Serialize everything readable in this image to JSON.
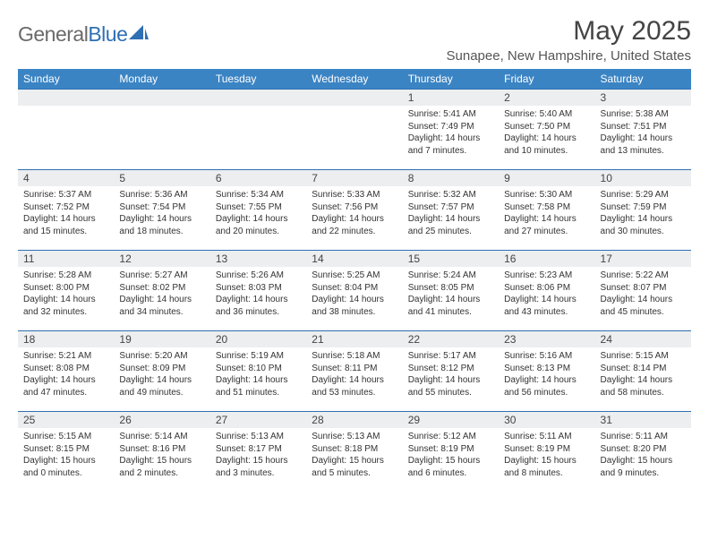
{
  "brand": {
    "g": "General",
    "b": "Blue"
  },
  "title": "May 2025",
  "location": "Sunapee, New Hampshire, United States",
  "colors": {
    "header_bg": "#3b84c4",
    "border": "#2f6fb3",
    "daynum_bg": "#eceeef",
    "logo_gray": "#6a6a6a",
    "logo_blue": "#2f6fb3"
  },
  "day_headers": [
    "Sunday",
    "Monday",
    "Tuesday",
    "Wednesday",
    "Thursday",
    "Friday",
    "Saturday"
  ],
  "weeks": [
    [
      {
        "n": "",
        "sr": "",
        "ss": "",
        "dh": "",
        "dm": ""
      },
      {
        "n": "",
        "sr": "",
        "ss": "",
        "dh": "",
        "dm": ""
      },
      {
        "n": "",
        "sr": "",
        "ss": "",
        "dh": "",
        "dm": ""
      },
      {
        "n": "",
        "sr": "",
        "ss": "",
        "dh": "",
        "dm": ""
      },
      {
        "n": "1",
        "sr": "5:41 AM",
        "ss": "7:49 PM",
        "dh": "14",
        "dm": "7"
      },
      {
        "n": "2",
        "sr": "5:40 AM",
        "ss": "7:50 PM",
        "dh": "14",
        "dm": "10"
      },
      {
        "n": "3",
        "sr": "5:38 AM",
        "ss": "7:51 PM",
        "dh": "14",
        "dm": "13"
      }
    ],
    [
      {
        "n": "4",
        "sr": "5:37 AM",
        "ss": "7:52 PM",
        "dh": "14",
        "dm": "15"
      },
      {
        "n": "5",
        "sr": "5:36 AM",
        "ss": "7:54 PM",
        "dh": "14",
        "dm": "18"
      },
      {
        "n": "6",
        "sr": "5:34 AM",
        "ss": "7:55 PM",
        "dh": "14",
        "dm": "20"
      },
      {
        "n": "7",
        "sr": "5:33 AM",
        "ss": "7:56 PM",
        "dh": "14",
        "dm": "22"
      },
      {
        "n": "8",
        "sr": "5:32 AM",
        "ss": "7:57 PM",
        "dh": "14",
        "dm": "25"
      },
      {
        "n": "9",
        "sr": "5:30 AM",
        "ss": "7:58 PM",
        "dh": "14",
        "dm": "27"
      },
      {
        "n": "10",
        "sr": "5:29 AM",
        "ss": "7:59 PM",
        "dh": "14",
        "dm": "30"
      }
    ],
    [
      {
        "n": "11",
        "sr": "5:28 AM",
        "ss": "8:00 PM",
        "dh": "14",
        "dm": "32"
      },
      {
        "n": "12",
        "sr": "5:27 AM",
        "ss": "8:02 PM",
        "dh": "14",
        "dm": "34"
      },
      {
        "n": "13",
        "sr": "5:26 AM",
        "ss": "8:03 PM",
        "dh": "14",
        "dm": "36"
      },
      {
        "n": "14",
        "sr": "5:25 AM",
        "ss": "8:04 PM",
        "dh": "14",
        "dm": "38"
      },
      {
        "n": "15",
        "sr": "5:24 AM",
        "ss": "8:05 PM",
        "dh": "14",
        "dm": "41"
      },
      {
        "n": "16",
        "sr": "5:23 AM",
        "ss": "8:06 PM",
        "dh": "14",
        "dm": "43"
      },
      {
        "n": "17",
        "sr": "5:22 AM",
        "ss": "8:07 PM",
        "dh": "14",
        "dm": "45"
      }
    ],
    [
      {
        "n": "18",
        "sr": "5:21 AM",
        "ss": "8:08 PM",
        "dh": "14",
        "dm": "47"
      },
      {
        "n": "19",
        "sr": "5:20 AM",
        "ss": "8:09 PM",
        "dh": "14",
        "dm": "49"
      },
      {
        "n": "20",
        "sr": "5:19 AM",
        "ss": "8:10 PM",
        "dh": "14",
        "dm": "51"
      },
      {
        "n": "21",
        "sr": "5:18 AM",
        "ss": "8:11 PM",
        "dh": "14",
        "dm": "53"
      },
      {
        "n": "22",
        "sr": "5:17 AM",
        "ss": "8:12 PM",
        "dh": "14",
        "dm": "55"
      },
      {
        "n": "23",
        "sr": "5:16 AM",
        "ss": "8:13 PM",
        "dh": "14",
        "dm": "56"
      },
      {
        "n": "24",
        "sr": "5:15 AM",
        "ss": "8:14 PM",
        "dh": "14",
        "dm": "58"
      }
    ],
    [
      {
        "n": "25",
        "sr": "5:15 AM",
        "ss": "8:15 PM",
        "dh": "15",
        "dm": "0"
      },
      {
        "n": "26",
        "sr": "5:14 AM",
        "ss": "8:16 PM",
        "dh": "15",
        "dm": "2"
      },
      {
        "n": "27",
        "sr": "5:13 AM",
        "ss": "8:17 PM",
        "dh": "15",
        "dm": "3"
      },
      {
        "n": "28",
        "sr": "5:13 AM",
        "ss": "8:18 PM",
        "dh": "15",
        "dm": "5"
      },
      {
        "n": "29",
        "sr": "5:12 AM",
        "ss": "8:19 PM",
        "dh": "15",
        "dm": "6"
      },
      {
        "n": "30",
        "sr": "5:11 AM",
        "ss": "8:19 PM",
        "dh": "15",
        "dm": "8"
      },
      {
        "n": "31",
        "sr": "5:11 AM",
        "ss": "8:20 PM",
        "dh": "15",
        "dm": "9"
      }
    ]
  ]
}
